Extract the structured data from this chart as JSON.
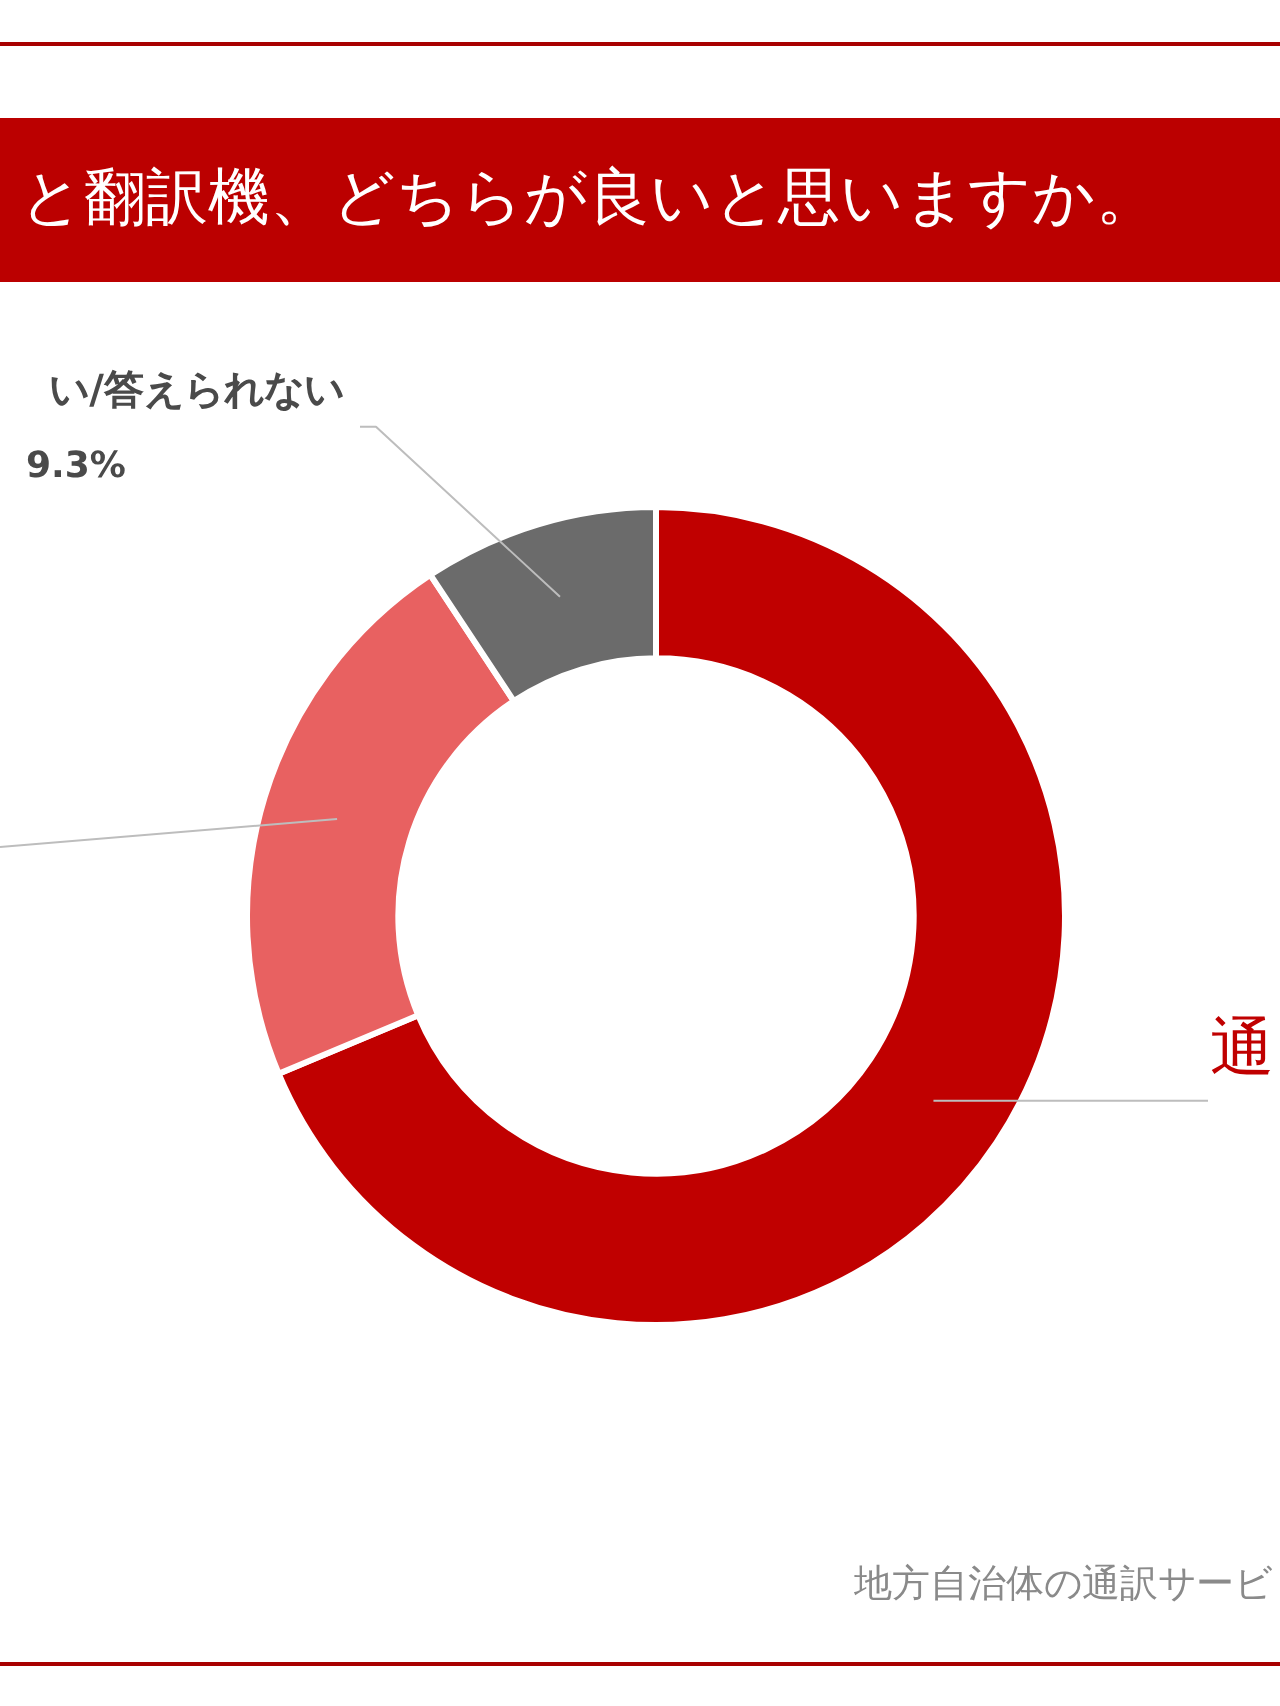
{
  "chart_data": {
    "type": "donut",
    "title": "と翻訳機、どちらが良いと思いますか。",
    "categories": [
      "通",
      null,
      "い/答えられない"
    ],
    "values": [
      68.7,
      22.0,
      9.3
    ],
    "colors": [
      "#c00000",
      "#e86161",
      "#6b6b6b"
    ],
    "value_labels": [
      null,
      null,
      "9.3%"
    ],
    "legend": false,
    "annotations": [
      "地方自治体の通訳サービ"
    ]
  }
}
